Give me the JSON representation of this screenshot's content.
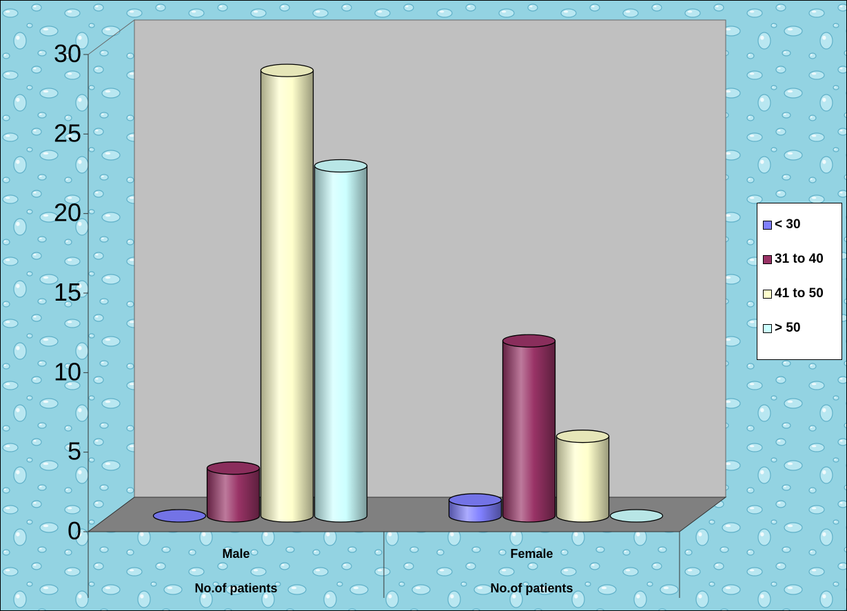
{
  "chart_data": {
    "type": "bar",
    "style": "3d-cylinder",
    "title": "",
    "xlabel": "",
    "ylabel": "",
    "ylim": [
      0,
      30
    ],
    "yticks": [
      "0",
      "5",
      "10",
      "15",
      "20",
      "25",
      "30"
    ],
    "categories": [
      {
        "name": "Male",
        "sublabel": "No.of patients"
      },
      {
        "name": "Female",
        "sublabel": "No.of patients"
      }
    ],
    "series": [
      {
        "name": "< 30",
        "color": "#8080ff",
        "values": [
          0,
          1
        ]
      },
      {
        "name": "31 to 40",
        "color": "#993366",
        "values": [
          3,
          11
        ]
      },
      {
        "name": "41 to 50",
        "color": "#ffffcc",
        "values": [
          28,
          5
        ]
      },
      {
        "name": "> 50",
        "color": "#ccffff",
        "values": [
          22,
          0
        ]
      }
    ],
    "legend": {
      "position": "right"
    },
    "wall_color": "#c0c0c0",
    "floor_color": "#808080",
    "background": "water-droplet texture, light cyan"
  }
}
